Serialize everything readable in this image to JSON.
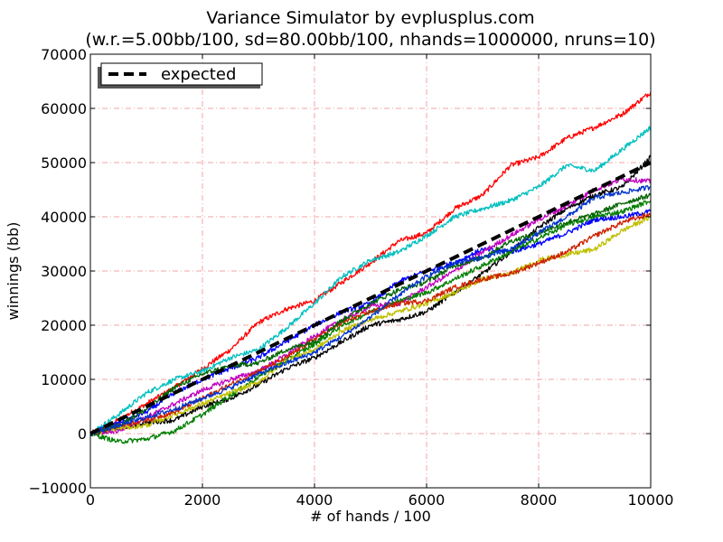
{
  "chart_data": {
    "type": "line",
    "title": "Variance Simulator by evplusplus.com",
    "subtitle": "(w.r.=5.00bb/100, sd=80.00bb/100, nhands=1000000, nruns=10)",
    "xlabel": "# of hands / 100",
    "ylabel": "winnings (bb)",
    "xlim": [
      0,
      10000
    ],
    "ylim": [
      -10000,
      70000
    ],
    "xticks": [
      0,
      2000,
      4000,
      6000,
      8000,
      10000
    ],
    "xtick_labels": [
      "0",
      "2000",
      "4000",
      "6000",
      "8000",
      "10000"
    ],
    "yticks": [
      -10000,
      0,
      10000,
      20000,
      30000,
      40000,
      50000,
      60000,
      70000
    ],
    "ytick_labels": [
      "−10000",
      "0",
      "10000",
      "20000",
      "30000",
      "40000",
      "50000",
      "60000",
      "70000"
    ],
    "grid": true,
    "legend": {
      "position": "top-left",
      "entries": [
        "expected"
      ]
    },
    "expected": {
      "x": [
        0,
        10000
      ],
      "y": [
        0,
        50000
      ],
      "color": "#000000"
    },
    "series": [
      {
        "color": "#ff0000",
        "x": [
          0,
          500,
          1000,
          1500,
          2000,
          2500,
          3000,
          3500,
          4000,
          4500,
          5000,
          5500,
          6000,
          6500,
          7000,
          7500,
          8000,
          8500,
          9000,
          9500,
          10000
        ],
        "y": [
          0,
          2500,
          5500,
          8500,
          12000,
          15500,
          20500,
          23000,
          24500,
          28000,
          31500,
          35500,
          37000,
          41500,
          44000,
          49500,
          51000,
          54500,
          56500,
          59000,
          63000
        ]
      },
      {
        "color": "#00bfbf",
        "x": [
          0,
          500,
          1000,
          1500,
          2000,
          2500,
          3000,
          3500,
          4000,
          4500,
          5000,
          5500,
          6000,
          6500,
          7000,
          7500,
          8000,
          8500,
          9000,
          9500,
          10000
        ],
        "y": [
          0,
          3500,
          7500,
          10000,
          11500,
          14000,
          15500,
          19500,
          24000,
          29000,
          32000,
          33500,
          36500,
          40000,
          41500,
          43000,
          45500,
          49500,
          48500,
          52500,
          56500
        ]
      },
      {
        "color": "#000000",
        "x": [
          0,
          500,
          1000,
          1500,
          2000,
          2500,
          3000,
          3500,
          4000,
          4500,
          5000,
          5500,
          6000,
          6500,
          7000,
          7500,
          8000,
          8500,
          9000,
          9500,
          10000
        ],
        "y": [
          0,
          1000,
          2000,
          2500,
          5000,
          6500,
          9000,
          12000,
          14000,
          17000,
          20000,
          21000,
          22500,
          26000,
          29500,
          33500,
          38000,
          41500,
          44000,
          45500,
          51000
        ]
      },
      {
        "color": "#0000ff",
        "x": [
          0,
          500,
          1000,
          1500,
          2000,
          2500,
          3000,
          3500,
          4000,
          4500,
          5000,
          5500,
          6000,
          6500,
          7000,
          7500,
          8000,
          8500,
          9000,
          9500,
          10000
        ],
        "y": [
          0,
          2000,
          4000,
          7500,
          10000,
          12000,
          14000,
          17000,
          20000,
          22500,
          24000,
          28000,
          30000,
          31500,
          34000,
          33500,
          35000,
          37000,
          39500,
          40000,
          41000
        ]
      },
      {
        "color": "#bf00bf",
        "x": [
          0,
          500,
          1000,
          1500,
          2000,
          2500,
          3000,
          3500,
          4000,
          4500,
          5000,
          5500,
          6000,
          6500,
          7000,
          7500,
          8000,
          8500,
          9000,
          9500,
          10000
        ],
        "y": [
          0,
          500,
          3000,
          5500,
          8000,
          10000,
          11500,
          14500,
          18000,
          21000,
          23500,
          24000,
          27000,
          30000,
          33500,
          36500,
          39500,
          42000,
          45000,
          47000,
          46500
        ]
      },
      {
        "color": "#007f00",
        "x": [
          0,
          500,
          1000,
          1500,
          2000,
          2500,
          3000,
          3500,
          4000,
          4500,
          5000,
          5500,
          6000,
          6500,
          7000,
          7500,
          8000,
          8500,
          9000,
          9500,
          10000
        ],
        "y": [
          0,
          -1500,
          -1000,
          500,
          3500,
          7000,
          10500,
          13500,
          16500,
          20000,
          22500,
          24500,
          26000,
          28500,
          31000,
          33500,
          36000,
          38500,
          40000,
          41000,
          43000
        ]
      },
      {
        "color": "#bfbf00",
        "x": [
          0,
          500,
          1000,
          1500,
          2000,
          2500,
          3000,
          3500,
          4000,
          4500,
          5000,
          5500,
          6000,
          6500,
          7000,
          7500,
          8000,
          8500,
          9000,
          9500,
          10000
        ],
        "y": [
          0,
          1000,
          1500,
          3500,
          5500,
          7500,
          9500,
          13500,
          15500,
          19000,
          21000,
          22500,
          24000,
          26000,
          28500,
          29500,
          32000,
          33000,
          34000,
          37500,
          40000
        ]
      },
      {
        "color": "#cc2200",
        "x": [
          0,
          500,
          1000,
          1500,
          2000,
          2500,
          3000,
          3500,
          4000,
          4500,
          5000,
          5500,
          6000,
          6500,
          7000,
          7500,
          8000,
          8500,
          9000,
          9500,
          10000
        ],
        "y": [
          0,
          1500,
          2500,
          4000,
          6500,
          9000,
          11500,
          14000,
          17500,
          20500,
          22500,
          24000,
          24500,
          27000,
          28500,
          29500,
          31500,
          33500,
          36500,
          39000,
          40500
        ]
      },
      {
        "color": "#006400",
        "x": [
          0,
          500,
          1000,
          1500,
          2000,
          2500,
          3000,
          3500,
          4000,
          4500,
          5000,
          5500,
          6000,
          6500,
          7000,
          7500,
          8000,
          8500,
          9000,
          9500,
          10000
        ],
        "y": [
          0,
          1500,
          4500,
          8500,
          11000,
          12500,
          13000,
          15500,
          17000,
          21000,
          24000,
          26500,
          28000,
          31000,
          32500,
          35500,
          37000,
          39000,
          40500,
          42500,
          44000
        ]
      },
      {
        "color": "#0033cc",
        "x": [
          0,
          500,
          1000,
          1500,
          2000,
          2500,
          3000,
          3500,
          4000,
          4500,
          5000,
          5500,
          6000,
          6500,
          7000,
          7500,
          8000,
          8500,
          9000,
          9500,
          10000
        ],
        "y": [
          0,
          1500,
          3000,
          4500,
          6500,
          8500,
          11000,
          13000,
          15000,
          18000,
          21500,
          25500,
          29000,
          31500,
          32500,
          34000,
          37000,
          40000,
          43500,
          44500,
          45500
        ]
      }
    ]
  }
}
